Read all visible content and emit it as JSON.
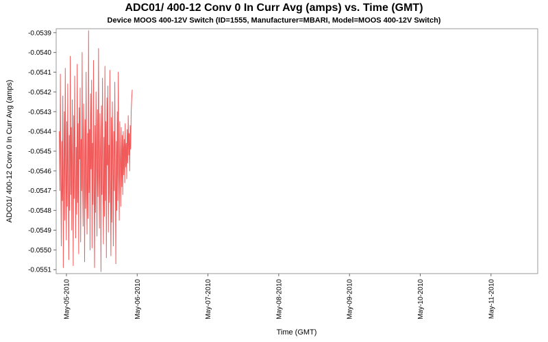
{
  "chart_data": {
    "type": "line",
    "title": "ADC01/ 400-12 Conv 0 In Curr Avg (amps) vs. Time (GMT)",
    "subtitle": "Device MOOS 400-12V Switch (ID=1555, Manufacturer=MBARI, Model=MOOS 400-12V Switch)",
    "xlabel": "Time (GMT)",
    "ylabel": "ADC01/ 400-12 Conv 0 In Curr Avg (amps)",
    "x_unit": "days since May-05-2010 00:00 GMT",
    "x_min": -0.145,
    "x_max": 6.66,
    "y_min": -0.05512,
    "y_max": -0.05388,
    "x_tick_positions": [
      0,
      1,
      2,
      3,
      4,
      5,
      6
    ],
    "x_tick_labels": [
      "May-05-2010",
      "May-06-2010",
      "May-07-2010",
      "May-08-2010",
      "May-09-2010",
      "May-10-2010",
      "May-11-2010"
    ],
    "y_ticks": [
      -0.0539,
      -0.054,
      -0.0541,
      -0.0542,
      -0.0543,
      -0.0544,
      -0.0545,
      -0.0546,
      -0.0547,
      -0.0548,
      -0.0549,
      -0.055,
      -0.0551
    ],
    "grid": false,
    "legend": "none",
    "border_color": "#999999",
    "tick_color": "#666666",
    "series": {
      "name": "ADC01/ 400-12 Conv 0 In Curr Avg",
      "color": "#f05a5a",
      "t_start": -0.1,
      "t_step": 0.007,
      "values": [
        -0.0544,
        -0.0547,
        -0.05411,
        -0.05465,
        -0.05498,
        -0.05445,
        -0.05475,
        -0.05422,
        -0.05509,
        -0.0546,
        -0.0543,
        -0.05485,
        -0.05408,
        -0.05455,
        -0.05495,
        -0.05435,
        -0.05478,
        -0.05416,
        -0.05468,
        -0.05505,
        -0.05442,
        -0.0548,
        -0.05402,
        -0.05472,
        -0.05438,
        -0.0549,
        -0.05424,
        -0.05458,
        -0.05508,
        -0.05432,
        -0.05474,
        -0.05412,
        -0.05462,
        -0.05494,
        -0.05448,
        -0.05482,
        -0.05406,
        -0.05476,
        -0.05436,
        -0.05502,
        -0.05428,
        -0.05454,
        -0.05418,
        -0.05496,
        -0.05444,
        -0.0547,
        -0.054,
        -0.05466,
        -0.05488,
        -0.05426,
        -0.05452,
        -0.05506,
        -0.05434,
        -0.05479,
        -0.0541,
        -0.05464,
        -0.05492,
        -0.05441,
        -0.05484,
        -0.05389,
        -0.05471,
        -0.05439,
        -0.055,
        -0.05421,
        -0.05459,
        -0.05414,
        -0.05499,
        -0.05446,
        -0.05477,
        -0.05404,
        -0.05469,
        -0.05509,
        -0.05437,
        -0.05481,
        -0.0542,
        -0.05456,
        -0.05493,
        -0.05429,
        -0.05473,
        -0.05398,
        -0.05461,
        -0.05489,
        -0.05431,
        -0.05453,
        -0.05511,
        -0.05427,
        -0.05472,
        -0.05413,
        -0.05467,
        -0.05497,
        -0.05443,
        -0.05483,
        -0.05407,
        -0.05475,
        -0.05435,
        -0.05504,
        -0.05423,
        -0.05457,
        -0.05417,
        -0.05491,
        -0.05447,
        -0.05476,
        -0.05409,
        -0.05463,
        -0.05503,
        -0.05433,
        -0.05486,
        -0.05425,
        -0.05451,
        -0.05498,
        -0.0544,
        -0.0547,
        -0.05415,
        -0.05465,
        -0.05507,
        -0.05445,
        -0.0548,
        -0.0543,
        -0.05475,
        -0.0541,
        -0.0546,
        -0.05485,
        -0.05435,
        -0.05455,
        -0.05478,
        -0.05438,
        -0.05468,
        -0.05442,
        -0.05472,
        -0.0544,
        -0.05462,
        -0.05444,
        -0.05466,
        -0.05436,
        -0.05458,
        -0.05446,
        -0.05464,
        -0.05439,
        -0.05456,
        -0.05432,
        -0.05452,
        -0.05441,
        -0.0546,
        -0.05437,
        -0.05449,
        -0.0543,
        -0.05424,
        -0.05419
      ]
    }
  }
}
